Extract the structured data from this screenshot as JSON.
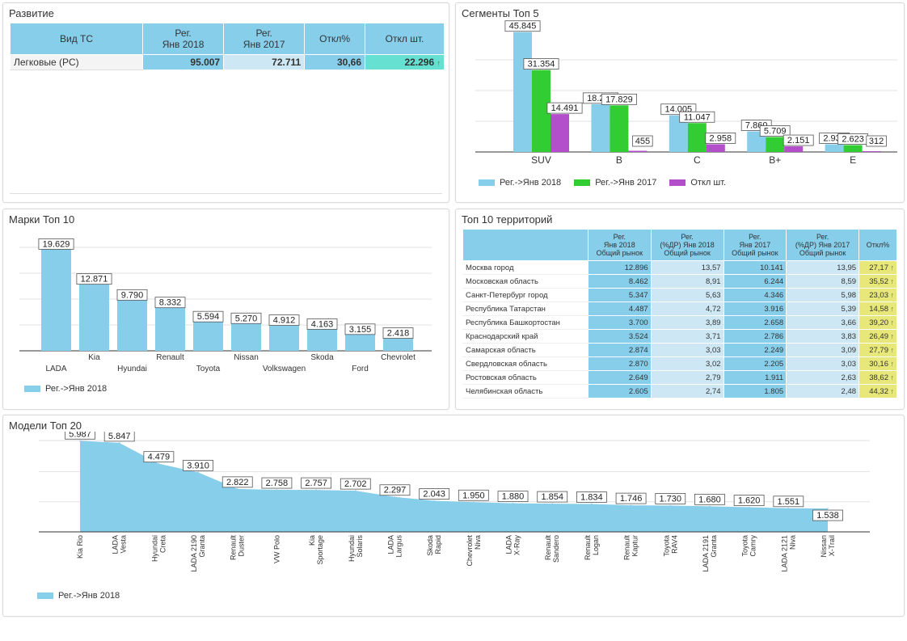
{
  "colors": {
    "blue": "#87ceeb",
    "green": "#32cd32",
    "purple": "#b44fcb",
    "teal": "#66e0d0",
    "yellow": "#e8e87a",
    "light": "#cde8f4",
    "up": "#2e8b2e"
  },
  "panels": {
    "development": "Развитие",
    "segments": "Сегменты Топ 5",
    "brands": "Марки Топ 10",
    "territories": "Топ 10 территорий",
    "models": "Модели Топ 20"
  },
  "development": {
    "headers": [
      "Вид ТС",
      "Рег.\nЯнв 2018",
      "Рег.\nЯнв 2017",
      "Откл%",
      "Откл шт."
    ],
    "row": {
      "label": "Легковые (PC)",
      "reg2018": "95.007",
      "reg2017": "72.711",
      "pct": "30,66",
      "diff": "22.296",
      "arrow": "↑"
    }
  },
  "legend": {
    "reg2018": "Рег.->Янв 2018",
    "reg2017": "Рег.->Янв 2017",
    "diff": "Откл шт."
  },
  "territories": {
    "headers": [
      "",
      "Рег.\nЯнв 2018\nОбщий рынок",
      "Рег.\n(%ДР) Янв 2018\nОбщий рынок",
      "Рег.\nЯнв 2017\nОбщий рынок",
      "Рег.\n(%ДР) Янв 2017\nОбщий рынок",
      "Откл%"
    ],
    "rows": [
      [
        "Москва город",
        "12.896",
        "13,57",
        "10.141",
        "13,95",
        "27,17"
      ],
      [
        "Московская область",
        "8.462",
        "8,91",
        "6.244",
        "8,59",
        "35,52"
      ],
      [
        "Санкт-Петербург город",
        "5.347",
        "5,63",
        "4.346",
        "5,98",
        "23,03"
      ],
      [
        "Республика Татарстан",
        "4.487",
        "4,72",
        "3.916",
        "5,39",
        "14,58"
      ],
      [
        "Республика Башкортостан",
        "3.700",
        "3,89",
        "2.658",
        "3,66",
        "39,20"
      ],
      [
        "Краснодарский край",
        "3.524",
        "3,71",
        "2.786",
        "3,83",
        "26,49"
      ],
      [
        "Самарская область",
        "2.874",
        "3,03",
        "2.249",
        "3,09",
        "27,79"
      ],
      [
        "Свердловская область",
        "2.870",
        "3,02",
        "2.205",
        "3,03",
        "30,16"
      ],
      [
        "Ростовская область",
        "2.649",
        "2,79",
        "1.911",
        "2,63",
        "38,62"
      ],
      [
        "Челябинская область",
        "2.605",
        "2,74",
        "1.805",
        "2,48",
        "44,32"
      ]
    ],
    "arrow": "↑"
  },
  "chart_data": [
    {
      "type": "bar",
      "title": "Сегменты Топ 5",
      "categories": [
        "SUV",
        "B",
        "C",
        "B+",
        "E"
      ],
      "series": [
        {
          "name": "Рег.->Янв 2018",
          "values": [
            45845,
            18284,
            14005,
            7860,
            2935
          ],
          "labels": [
            "45.845",
            "18.284",
            "14.005",
            "7.860",
            "2.935"
          ]
        },
        {
          "name": "Рег.->Янв 2017",
          "values": [
            31354,
            17829,
            11047,
            5709,
            2623
          ],
          "labels": [
            "31.354",
            "17.829",
            "11.047",
            "5.709",
            "2.623"
          ]
        },
        {
          "name": "Откл шт.",
          "values": [
            14491,
            455,
            2958,
            2151,
            312
          ],
          "labels": [
            "14.491",
            "455",
            "2.958",
            "2.151",
            "312"
          ]
        }
      ],
      "ylim": [
        0,
        47000
      ]
    },
    {
      "type": "bar",
      "title": "Марки Топ 10",
      "categories": [
        "LADA",
        "Kia",
        "Hyundai",
        "Renault",
        "Toyota",
        "Nissan",
        "Volkswagen",
        "Skoda",
        "Ford",
        "Chevrolet"
      ],
      "series": [
        {
          "name": "Рег.->Янв 2018",
          "values": [
            19629,
            12871,
            9790,
            8332,
            5594,
            5270,
            4912,
            4163,
            3155,
            2418
          ],
          "labels": [
            "19.629",
            "12.871",
            "9.790",
            "8.332",
            "5.594",
            "5.270",
            "4.912",
            "4.163",
            "3.155",
            "2.418"
          ]
        }
      ],
      "ylim": [
        0,
        20000
      ]
    },
    {
      "type": "area",
      "title": "Модели Топ 20",
      "categories": [
        "Kia Rio",
        "LADA Vesta",
        "Hyundai Creta",
        "LADA 2190 Granta",
        "Renault Duster",
        "VW Polo",
        "Kia Sportage",
        "Hyundai Solaris",
        "LADA Largus",
        "Skoda Rapid",
        "Chevrolet Niva",
        "LADA X-Ray",
        "Renault Sandero",
        "Renault Logan",
        "Renault Kaptur",
        "Toyota RAV4",
        "LADA 2191 Granta",
        "Toyota Camry",
        "LADA 2121 Niva",
        "Nissan X-Trail"
      ],
      "category_lines": [
        [
          "Kia Rio"
        ],
        [
          "LADA",
          "Vesta"
        ],
        [
          "Hyundai",
          "Creta"
        ],
        [
          "LADA 2190",
          "Granta"
        ],
        [
          "Renault",
          "Duster"
        ],
        [
          "VW Polo"
        ],
        [
          "Kia",
          "Sportage"
        ],
        [
          "Hyundai",
          "Solaris"
        ],
        [
          "LADA",
          "Largus"
        ],
        [
          "Skoda",
          "Rapid"
        ],
        [
          "Chevrolet",
          "Niva"
        ],
        [
          "LADA",
          "X-Ray"
        ],
        [
          "Renault",
          "Sandero"
        ],
        [
          "Renault",
          "Logan"
        ],
        [
          "Renault",
          "Kaptur"
        ],
        [
          "Toyota",
          "RAV4"
        ],
        [
          "LADA 2191",
          "Granta"
        ],
        [
          "Toyota",
          "Camry"
        ],
        [
          "LADA 2121",
          "Niva"
        ],
        [
          "Nissan",
          "X-Trail"
        ]
      ],
      "series": [
        {
          "name": "Рег.->Янв 2018",
          "values": [
            5987,
            5847,
            4479,
            3910,
            2822,
            2758,
            2757,
            2702,
            2297,
            2043,
            1950,
            1880,
            1854,
            1834,
            1746,
            1730,
            1680,
            1620,
            1551,
            1538
          ],
          "labels": [
            "5.987",
            "5.847",
            "4.479",
            "3.910",
            "2.822",
            "2.758",
            "2.757",
            "2.702",
            "2.297",
            "2.043",
            "1.950",
            "1.880",
            "1.854",
            "1.834",
            "1.746",
            "1.730",
            "1.680",
            "1.620",
            "1.551",
            "1.538"
          ]
        }
      ],
      "ylim": [
        0,
        6000
      ]
    }
  ]
}
